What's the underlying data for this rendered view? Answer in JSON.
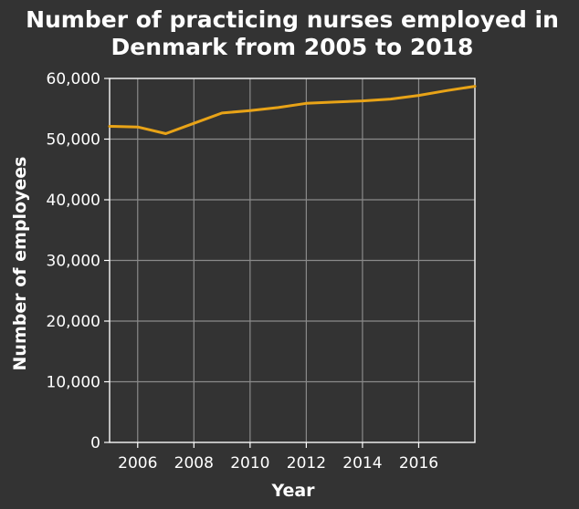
{
  "chart_data": {
    "type": "line",
    "title": "Number of practicing nurses employed in Denmark from 2005 to 2018",
    "title_lines": [
      "Number of practicing nurses employed in",
      "Denmark from 2005 to 2018"
    ],
    "xlabel": "Year",
    "ylabel": "Number of employees",
    "xlim": [
      2005,
      2018
    ],
    "ylim": [
      0,
      60000
    ],
    "x_ticks": [
      2006,
      2008,
      2010,
      2012,
      2014,
      2016
    ],
    "x_tick_labels": [
      "2006",
      "2008",
      "2010",
      "2012",
      "2014",
      "2016"
    ],
    "y_ticks": [
      0,
      10000,
      20000,
      30000,
      40000,
      50000,
      60000
    ],
    "y_tick_labels": [
      "0",
      "10,000",
      "20,000",
      "30,000",
      "40,000",
      "50,000",
      "60,000"
    ],
    "grid": true,
    "legend": "none",
    "colors": {
      "background": "#333333",
      "line": "#e8a317",
      "text": "#ffffff",
      "grid": "#8a8a8a"
    },
    "series": [
      {
        "x": [
          2005,
          2006,
          2007,
          2008,
          2009,
          2010,
          2011,
          2012,
          2013,
          2014,
          2015,
          2016,
          2017,
          2018
        ],
        "values": [
          52100,
          52000,
          50900,
          52600,
          54300,
          54700,
          55200,
          55900,
          56100,
          56300,
          56600,
          57200,
          58000,
          58700
        ]
      }
    ]
  }
}
